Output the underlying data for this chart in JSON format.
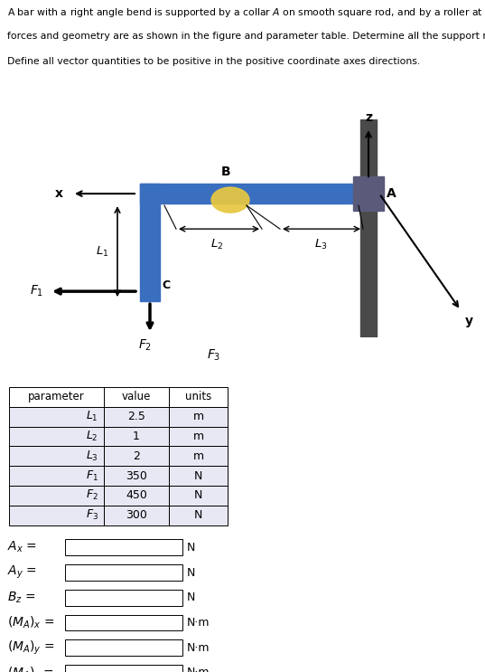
{
  "bar_color": "#3A6EBF",
  "bar_color_dark": "#2A5A9F",
  "rod_color": "#4A4A4A",
  "collar_color": "#5A5A7A",
  "roller_color": "#E8C840",
  "bg_color": "#FFFFFF",
  "table_header_color": "#FFFFFF",
  "table_row_color": "#E8E8F5",
  "table_params": [
    "$\\mathit{L_1}$",
    "$\\mathit{L_2}$",
    "$\\mathit{L_3}$",
    "$\\mathit{F_1}$",
    "$\\mathit{F_2}$",
    "$\\mathit{F_3}$"
  ],
  "table_values": [
    "2.5",
    "1",
    "2",
    "350",
    "450",
    "300"
  ],
  "table_units": [
    "m",
    "m",
    "m",
    "N",
    "N",
    "N"
  ],
  "answer_labels": [
    "$A_x$",
    "$A_y$",
    "$B_z$",
    "$(M_A)_x$",
    "$(M_A)_y$",
    "$(M_A)_z$"
  ],
  "answer_units": [
    "N",
    "N",
    "N",
    "N·m",
    "N·m",
    "N·m"
  ]
}
